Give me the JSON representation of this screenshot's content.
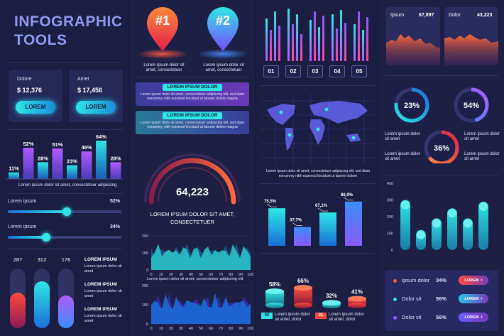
{
  "header": {
    "title_line1": "INFOGRAPHIC",
    "title_line2": "TOOLS"
  },
  "cards": [
    {
      "label": "Dolore",
      "value": "$ 12,376",
      "button": "LOREM"
    },
    {
      "label": "Amet",
      "value": "$ 17,456",
      "button": "LOREM"
    }
  ],
  "bar_chart_1": {
    "labels": [
      "11%",
      "52%",
      "28%",
      "51%",
      "23%",
      "46%",
      "64%",
      "28%"
    ],
    "values": [
      11,
      52,
      28,
      51,
      23,
      46,
      64,
      28
    ],
    "caption": "Lorem ipsum dolor sit amet, consectetuer adipiscing"
  },
  "sliders": [
    {
      "label": "Lorem ipsum",
      "value_text": "52%",
      "value": 0.52
    },
    {
      "label": "Lorem ipsum",
      "value_text": "34%",
      "value": 0.34
    }
  ],
  "vertical_bars": {
    "values_text": [
      "287",
      "312",
      "176"
    ],
    "fill": [
      0.6,
      0.78,
      0.55
    ],
    "legend": [
      "LOREM IPSUM",
      "LOREM IPSUM",
      "LOREM IPSUM"
    ],
    "legend_sub": [
      "Lorem ipsum dolor sit amet",
      "Lorem ipsum dolor sit amet",
      "Lorem ipsum dolor sit amet"
    ]
  },
  "pins": [
    {
      "label": "#1",
      "text": "Lorem ipsum dolor sit amet, consectetuer",
      "color": "#ff5a3c"
    },
    {
      "label": "#2",
      "text": "Lorem ipsum dolor sit amet, consectetuer",
      "color": "#4a8dff"
    }
  ],
  "banners": [
    {
      "label": "LOREM IPSUM DOLOR",
      "text": "Lorem ipsum dolor sit amet, consectetuer adipiscing elit, sed diam nonummy nibh euismod tincidunt ut laoreet dolore magna"
    },
    {
      "label": "LOREM IPSUM DOLOR",
      "text": "Lorem ipsum dolor sit amet, consectetuer adipiscing elit, sed diam nonummy nibh euismod tincidunt ut laoreet dolore magna"
    }
  ],
  "gauge": {
    "value": "64,223",
    "caption_line1": "LOREM IPSUM DOLOR SIT AMET,",
    "caption_line2": "CONSECTETUER"
  },
  "area_chart_1": {
    "yticks": [
      "200",
      "100",
      "0"
    ],
    "xticks": [
      "0",
      "10",
      "20",
      "30",
      "40",
      "50",
      "60",
      "70",
      "80",
      "90",
      "100"
    ],
    "caption": "Lorem ipsum dolor sit amet, consectetuer adipiscing elit"
  },
  "area_chart_2": {
    "yticks": [
      "200",
      "100",
      "0"
    ],
    "xticks": [
      "0",
      "10",
      "20",
      "30",
      "40",
      "50",
      "60",
      "70",
      "80",
      "90",
      "100"
    ]
  },
  "column_chart": {
    "labels": [
      "01",
      "02",
      "03",
      "04",
      "05"
    ]
  },
  "map": {
    "caption": "Lorem ipsum dolor sit amet, consectetuer adipiscing elit, sed diam nonummy nibh euismod tincidunt ut laoreet dolore"
  },
  "bar_chart_3": {
    "labels": [
      "75,5%",
      "37,7%",
      "67,1%",
      "88,9%"
    ],
    "values": [
      0.755,
      0.377,
      0.671,
      0.889
    ]
  },
  "cylinders": {
    "labels": [
      "58%",
      "66%",
      "32%",
      "41%"
    ],
    "values": [
      0.58,
      0.66,
      0.32,
      0.41
    ],
    "legend": [
      {
        "num": "02",
        "text": "Lorem ipsum dolor sit amet, dolor"
      },
      {
        "num": "01",
        "text": "Lorem ipsum dolor sit amet, dolor"
      }
    ]
  },
  "mini_areas": [
    {
      "label": "Ipsum",
      "value": "67,897"
    },
    {
      "label": "Dolor",
      "value": "43,223"
    }
  ],
  "donuts": [
    {
      "label": "23%",
      "value": 0.23
    },
    {
      "label": "54%",
      "value": 0.54
    },
    {
      "label": "36%",
      "value": 0.36
    }
  ],
  "donut_texts": [
    "Lorem ipsum dolor sit amet",
    "Lorem ipsum dolor sit amet",
    "Lorem ipsum dolor sit amet",
    "Lorem ipsum dolor sit amet"
  ],
  "bar_chart_4": {
    "yticks": [
      "400",
      "300",
      "200",
      "100",
      "0"
    ],
    "values": [
      300,
      120,
      190,
      250,
      190,
      290
    ]
  },
  "list_rows": [
    {
      "label": "Ipsum dolor",
      "value": "34%",
      "button": "LOREM",
      "dot": "#ff5a3c",
      "btn_color": "#ff4a3c"
    },
    {
      "label": "Dolor sit",
      "value": "56%",
      "button": "LOREM",
      "dot": "#2ee6e6",
      "btn_color": "#29c8e6"
    },
    {
      "label": "Dolor sit",
      "value": "56%",
      "button": "LOREM",
      "dot": "#8f5aff",
      "btn_color": "#6a5aff"
    }
  ]
}
